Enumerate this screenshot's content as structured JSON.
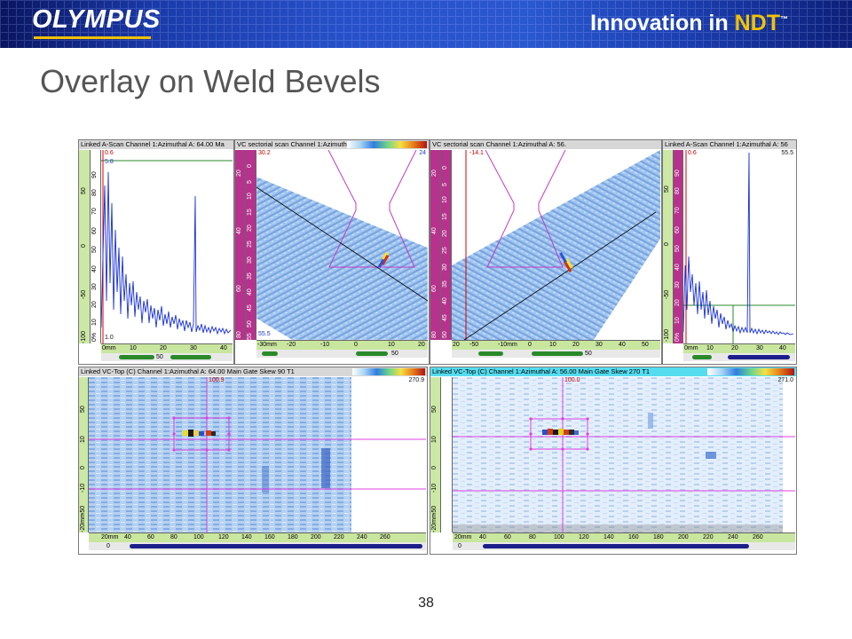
{
  "header": {
    "brand": "OLYMPUS",
    "tagline_prefix": "Innovation in ",
    "tagline_accent": "NDT",
    "tagline_mark": "™"
  },
  "slide": {
    "title": "Overlay on Weld Bevels",
    "page_number": "38"
  },
  "panels": {
    "ascan_left": {
      "title": "Linked A-Scan Channel 1:Azimuthal   A: 64.00 Ma",
      "top_value": "0.6",
      "marker_value": "5.8",
      "bottom_value": "1.0",
      "v_ticks_green": [
        "50",
        "0",
        "-50",
        "-100"
      ],
      "v_ticks_white": [
        "90",
        "80",
        "70",
        "60",
        "50",
        "40",
        "30",
        "20",
        "10",
        "0%"
      ],
      "h_ticks": [
        "0mm",
        "10",
        "20",
        "30",
        "40"
      ],
      "scroll_value": "50"
    },
    "sector_left": {
      "title": "VC sectorial scan Channel 1:Azimuth",
      "top_value": "30.2",
      "right_value": "24",
      "bottom_value": "55.5",
      "v_ticks": [
        "0",
        "5",
        "10",
        "15",
        "20",
        "25",
        "30",
        "35",
        "40",
        "45",
        "50",
        "55"
      ],
      "v_ticks_outer": [
        "20",
        "40",
        "60",
        "80"
      ],
      "h_ticks": [
        "-30mm",
        "-20",
        "-10",
        "0",
        "10",
        "20"
      ],
      "scroll_value": "50"
    },
    "sector_right": {
      "title": "VC sectorial scan Channel 1:Azimuthal   A: 56.",
      "top_value": "-14.1",
      "v_ticks": [
        "0",
        "5",
        "10",
        "15",
        "20",
        "25",
        "30",
        "35",
        "40",
        "45",
        "50"
      ],
      "v_ticks_outer": [
        "20",
        "40",
        "60",
        "80"
      ],
      "h_ticks": [
        "20",
        "-50",
        "-10mm",
        "0",
        "10",
        "20",
        "30",
        "40",
        "50"
      ],
      "scroll_value": "50"
    },
    "ascan_right": {
      "title": "Linked A-Scan Channel 1:Azimuthal   A: 56",
      "top_value": "0.6",
      "right_value": "55.5",
      "v_ticks_green": [
        "50",
        "0",
        "-50",
        "-100"
      ],
      "v_ticks_white": [
        "90",
        "80",
        "70",
        "60",
        "50",
        "40",
        "30",
        "20",
        "10",
        "0%"
      ],
      "h_ticks": [
        "0mm",
        "10",
        "20",
        "30",
        "40"
      ]
    },
    "ctop_left": {
      "title": "Linked VC-Top (C) Channel 1:Azimuthal   A: 64.00 Main Gate Skew 90 T1",
      "top_value": "100.9",
      "right_value": "270.9",
      "v_ticks": [
        "50",
        "10",
        "0",
        "-10",
        "-50",
        "-20mm"
      ],
      "h_ticks": [
        "20mm",
        "40",
        "60",
        "80",
        "100",
        "120",
        "140",
        "160",
        "180",
        "200",
        "220",
        "240",
        "260"
      ],
      "scroll_value": "0"
    },
    "ctop_right": {
      "title": "Linked VC-Top (C) Channel 1:Azimuthal   A: 56.00 Main Gate Skew 270 T1",
      "top_value": "100.0",
      "right_value": "271.0",
      "v_ticks": [
        "50",
        "10",
        "0",
        "-10",
        "-50",
        "-20mm"
      ],
      "h_ticks": [
        "20mm",
        "40",
        "60",
        "80",
        "100",
        "120",
        "140",
        "160",
        "180",
        "200",
        "220",
        "240",
        "260"
      ],
      "scroll_value": "0"
    }
  }
}
